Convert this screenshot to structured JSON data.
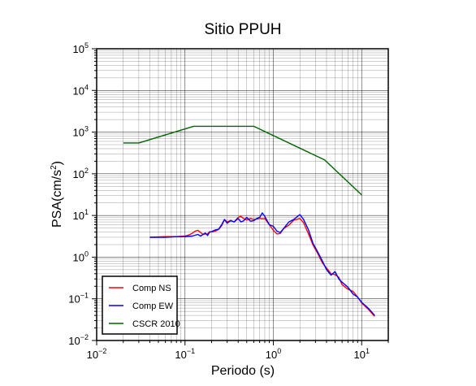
{
  "chart_data": {
    "type": "line",
    "title": "Sitio PPUH",
    "xlabel": "Periodo (s)",
    "ylabel_main": "PSA(cm/s",
    "ylabel_sup": "2",
    "ylabel_close": ")",
    "x_scale": "log",
    "y_scale": "log",
    "xlim": [
      0.01,
      20
    ],
    "ylim": [
      0.01,
      100000
    ],
    "grid": true,
    "legend_position": "bottom-left",
    "x_ticks": [
      {
        "value": 0.01,
        "base": "10",
        "exp": "−2"
      },
      {
        "value": 0.1,
        "base": "10",
        "exp": "−1"
      },
      {
        "value": 1,
        "base": "10",
        "exp": "0"
      },
      {
        "value": 10,
        "base": "10",
        "exp": "1"
      }
    ],
    "y_ticks": [
      {
        "value": 0.01,
        "base": "10",
        "exp": "−2"
      },
      {
        "value": 0.1,
        "base": "10",
        "exp": "−1"
      },
      {
        "value": 1,
        "base": "10",
        "exp": "0"
      },
      {
        "value": 10,
        "base": "10",
        "exp": "1"
      },
      {
        "value": 100,
        "base": "10",
        "exp": "2"
      },
      {
        "value": 1000,
        "base": "10",
        "exp": "3"
      },
      {
        "value": 10000,
        "base": "10",
        "exp": "4"
      },
      {
        "value": 100000,
        "base": "10",
        "exp": "5"
      }
    ],
    "series": [
      {
        "name": "Comp NS",
        "color": "#ff0000",
        "x": [
          0.04,
          0.06,
          0.08,
          0.1,
          0.11,
          0.12,
          0.13,
          0.14,
          0.15,
          0.16,
          0.17,
          0.18,
          0.19,
          0.2,
          0.22,
          0.24,
          0.26,
          0.28,
          0.3,
          0.33,
          0.36,
          0.4,
          0.43,
          0.46,
          0.5,
          0.55,
          0.6,
          0.65,
          0.7,
          0.75,
          0.8,
          0.9,
          1.0,
          1.1,
          1.2,
          1.3,
          1.5,
          1.7,
          2.0,
          2.2,
          2.5,
          2.8,
          3.2,
          3.6,
          4.0,
          4.5,
          5.0,
          5.5,
          6.0,
          7.0,
          8.0,
          9.0,
          10.0,
          12.0,
          14.0
        ],
        "y": [
          3.0,
          3.1,
          3.1,
          3.2,
          3.4,
          3.7,
          4.2,
          4.4,
          3.9,
          3.5,
          3.6,
          3.6,
          4.1,
          4.0,
          4.2,
          4.6,
          5.7,
          8.0,
          7.0,
          7.6,
          7.0,
          9.0,
          9.5,
          8.5,
          7.8,
          8.5,
          8.0,
          8.2,
          8.6,
          8.3,
          8.5,
          6.0,
          4.4,
          3.6,
          3.7,
          4.8,
          5.9,
          7.7,
          8.5,
          6.7,
          3.6,
          2.0,
          1.2,
          0.72,
          0.55,
          0.4,
          0.38,
          0.33,
          0.22,
          0.17,
          0.15,
          0.11,
          0.08,
          0.055,
          0.038
        ]
      },
      {
        "name": "Comp EW",
        "color": "#0000ff",
        "x": [
          0.04,
          0.06,
          0.08,
          0.1,
          0.12,
          0.14,
          0.15,
          0.16,
          0.17,
          0.18,
          0.19,
          0.2,
          0.22,
          0.24,
          0.26,
          0.28,
          0.3,
          0.33,
          0.36,
          0.4,
          0.43,
          0.46,
          0.5,
          0.55,
          0.6,
          0.65,
          0.7,
          0.75,
          0.8,
          0.9,
          1.0,
          1.1,
          1.2,
          1.3,
          1.5,
          1.7,
          2.0,
          2.2,
          2.5,
          2.8,
          3.2,
          3.6,
          4.0,
          4.5,
          5.0,
          5.5,
          6.0,
          7.0,
          8.0,
          9.0,
          10.0,
          12.0,
          14.0
        ],
        "y": [
          3.0,
          3.0,
          3.1,
          3.1,
          3.2,
          3.5,
          3.2,
          3.5,
          3.8,
          3.3,
          4.0,
          4.1,
          4.5,
          4.7,
          6.0,
          8.0,
          6.5,
          7.5,
          7.0,
          8.5,
          7.0,
          7.4,
          9.0,
          7.3,
          7.5,
          8.5,
          9.0,
          11.5,
          9.5,
          6.0,
          5.5,
          4.2,
          3.9,
          4.8,
          7.0,
          8.0,
          10.5,
          8.0,
          4.5,
          2.2,
          1.3,
          0.8,
          0.5,
          0.37,
          0.45,
          0.3,
          0.25,
          0.19,
          0.13,
          0.11,
          0.082,
          0.058,
          0.04
        ]
      },
      {
        "name": "CSCR 2010",
        "color": "#006400",
        "x": [
          0.02,
          0.03,
          0.125,
          0.6,
          3.8,
          10.0
        ],
        "y": [
          550,
          550,
          1380,
          1380,
          215,
          31
        ]
      }
    ]
  }
}
